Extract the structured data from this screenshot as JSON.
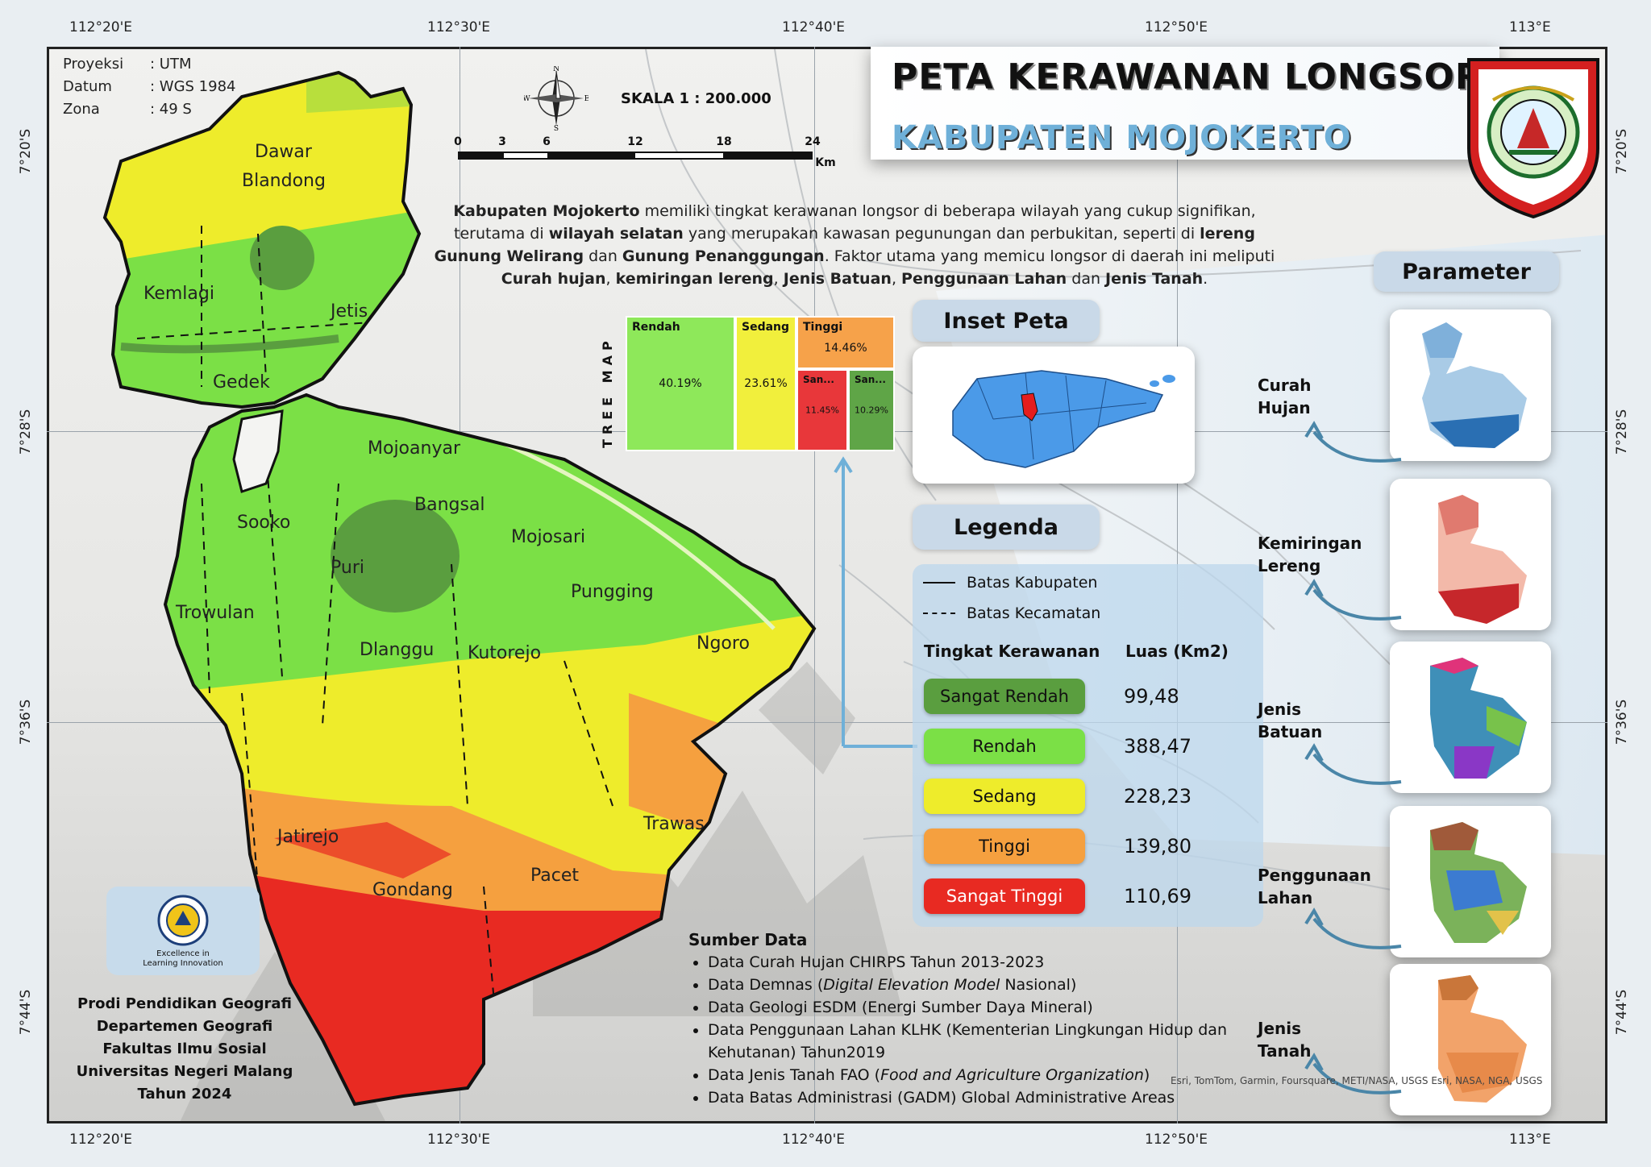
{
  "title": "PETA KERAWANAN LONGSOR",
  "subtitle": "KABUPATEN MOJOKERTO",
  "projection": [
    {
      "key": "Proyeksi",
      "value": ": UTM"
    },
    {
      "key": "Datum",
      "value": ":  WGS 1984"
    },
    {
      "key": "Zona",
      "value": ":   49 S"
    }
  ],
  "graticule": {
    "top": [
      "112°20'E",
      "112°30'E",
      "112°40'E",
      "112°50'E",
      "113°E"
    ],
    "bottom": [
      "112°20'E",
      "112°30'E",
      "112°40'E",
      "112°50'E",
      "113°E"
    ],
    "left": [
      "7°20'S",
      "7°28'S",
      "7°36'S",
      "7°44'S"
    ],
    "right": [
      "7°20'S",
      "7°28'S",
      "7°36'S",
      "7°44'S"
    ]
  },
  "compass": {
    "n": "N",
    "s": "S",
    "e": "E",
    "w": "W"
  },
  "scale": {
    "title": "SKALA 1 : 200.000",
    "ticks": [
      "0",
      "3",
      "6",
      "12",
      "18",
      "24"
    ],
    "unit": "Km"
  },
  "description_parts": [
    {
      "text": "Kabupaten Mojokerto",
      "bold": true
    },
    {
      "text": " memiliki tingkat kerawanan longsor di beberapa wilayah yang cukup signifikan, terutama di ",
      "bold": false
    },
    {
      "text": "wilayah selatan",
      "bold": true
    },
    {
      "text": " yang merupakan kawasan pegunungan dan perbukitan, seperti di ",
      "bold": false
    },
    {
      "text": "lereng Gunung Welirang",
      "bold": true
    },
    {
      "text": " dan ",
      "bold": false
    },
    {
      "text": "Gunung Penanggungan",
      "bold": true
    },
    {
      "text": ". Faktor utama yang memicu longsor di daerah ini meliputi ",
      "bold": false
    },
    {
      "text": "Curah hujan",
      "bold": true
    },
    {
      "text": ", ",
      "bold": false
    },
    {
      "text": "kemiringan lereng",
      "bold": true
    },
    {
      "text": ", ",
      "bold": false
    },
    {
      "text": "Jenis Batuan",
      "bold": true
    },
    {
      "text": ", ",
      "bold": false
    },
    {
      "text": "Penggunaan Lahan",
      "bold": true
    },
    {
      "text": " dan ",
      "bold": false
    },
    {
      "text": "Jenis Tanah",
      "bold": true
    },
    {
      "text": ".",
      "bold": false
    }
  ],
  "treemap": {
    "label": "TREE MAP",
    "cells": [
      {
        "name": "Rendah",
        "percent": "40.19%",
        "color": "#8ee85a"
      },
      {
        "name": "Sedang",
        "percent": "23.61%",
        "color": "#f1ef3c"
      },
      {
        "name": "Tinggi",
        "percent": "14.46%",
        "color": "#f6a24a"
      },
      {
        "name": "San...",
        "percent": "11.45%",
        "color": "#e8373a"
      },
      {
        "name": "San...",
        "percent": "10.29%",
        "color": "#5fa547"
      }
    ]
  },
  "inset": {
    "title": "Inset Peta"
  },
  "legend": {
    "title": "Legenda",
    "lines": [
      {
        "label": "Batas Kabupaten",
        "style": "solid"
      },
      {
        "label": "Batas Kecamatan",
        "style": "dashed"
      }
    ],
    "col_class": "Tingkat Kerawanan",
    "col_area": "Luas (Km2)",
    "classes": [
      {
        "label": "Sangat Rendah",
        "value": "99,48",
        "color": "#5a9e3f"
      },
      {
        "label": "Rendah",
        "value": "388,47",
        "color": "#7be046"
      },
      {
        "label": "Sedang",
        "value": "228,23",
        "color": "#eeec2b"
      },
      {
        "label": "Tinggi",
        "value": "139,80",
        "color": "#f5a03f"
      },
      {
        "label": "Sangat Tinggi",
        "value": "110,69",
        "color": "#e82a22"
      }
    ]
  },
  "parameters": {
    "title": "Parameter",
    "items": [
      {
        "line1": "Curah",
        "line2": "Hujan"
      },
      {
        "line1": "Kemiringan",
        "line2": "Lereng"
      },
      {
        "line1": "Jenis",
        "line2": "Batuan"
      },
      {
        "line1": "Penggunaan",
        "line2": "Lahan"
      },
      {
        "line1": "Jenis",
        "line2": "Tanah"
      }
    ]
  },
  "districts": [
    "Dawar",
    "Blandong",
    "Kemlagi",
    "Jetis",
    "Gedek",
    "Mojoanyar",
    "Bangsal",
    "Sooko",
    "Puri",
    "Mojosari",
    "Pungging",
    "Trowulan",
    "Dlanggu",
    "Kutorejo",
    "Ngoro",
    "Jatirejo",
    "Trawas",
    "Gondang",
    "Pacet"
  ],
  "institution": {
    "logo_text_1": "Excellence in",
    "logo_text_2": "Learning Innovation",
    "lines": [
      "Prodi Pendidikan Geografi",
      "Departemen Geografi",
      "Fakultas Ilmu Sosial",
      "Universitas Negeri Malang",
      "Tahun 2024"
    ]
  },
  "sources": {
    "title": "Sumber Data",
    "items": [
      [
        {
          "t": "Data Curah Hujan CHIRPS Tahun 2013-2023",
          "i": false
        }
      ],
      [
        {
          "t": "Data Demnas (",
          "i": false
        },
        {
          "t": "Digital Elevation Model",
          "i": true
        },
        {
          "t": " Nasional)",
          "i": false
        }
      ],
      [
        {
          "t": "Data Geologi ESDM (Energi Sumber Daya Mineral)",
          "i": false
        }
      ],
      [
        {
          "t": "Data Penggunaan Lahan KLHK (Kementerian Lingkungan Hidup dan Kehutanan) Tahun2019",
          "i": false
        }
      ],
      [
        {
          "t": "Data  Jenis Tanah FAO (",
          "i": false
        },
        {
          "t": "Food and Agriculture Organization",
          "i": true
        },
        {
          "t": ")",
          "i": false
        }
      ],
      [
        {
          "t": "Data Batas Administrasi (GADM) Global Administrative Areas",
          "i": false
        }
      ]
    ]
  },
  "attribution": "Esri, TomTom, Garmin, Foursquare, METI/NASA, USGS  Esri, NASA, NGA, USGS",
  "colors": {
    "accent_blue": "#6fb0d8",
    "panel_blue": "#c9d9e8",
    "arrow_blue": "#4a86a8",
    "boundary": "#111111"
  }
}
